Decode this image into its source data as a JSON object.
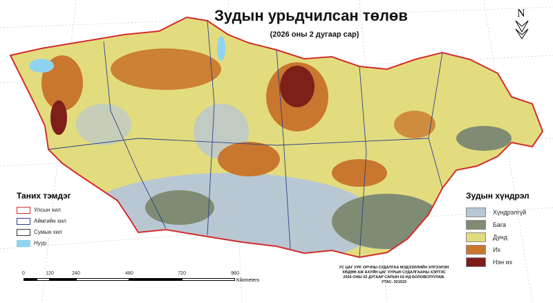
{
  "title": "Зудын урьдчилсан төлөв",
  "subtitle": "(2026 оны 2 дугаар сар)",
  "north_arrow": {
    "label": "N",
    "icon": "north-arrow-icon"
  },
  "legend_boundaries": {
    "title": "Таних тэмдэг",
    "items": [
      {
        "label": "Улсын хил",
        "color": "#d22b2b"
      },
      {
        "label": "Аймгийн хил",
        "color": "#2b3f8c"
      },
      {
        "label": "Сумын хил",
        "color": "#333333"
      },
      {
        "label": "Нуур",
        "color": "#8fd3f0"
      }
    ]
  },
  "legend_classes": {
    "title": "Зудын хүндрэл",
    "items": [
      {
        "label": "Хүндрэлгүй",
        "color": "#b9c7d3"
      },
      {
        "label": "Бага",
        "color": "#7f8c73"
      },
      {
        "label": "Дунд",
        "color": "#e3dc7e"
      },
      {
        "label": "Их",
        "color": "#c9772e"
      },
      {
        "label": "Нэн их",
        "color": "#7e1f1a"
      }
    ]
  },
  "credits": [
    "УС ЦАГ УУР, ОРЧНЫ СУДАЛГАА МЭДЭЭЛЛИЙН ХҮРЭЭЛЭН",
    "ХӨДӨӨ АЖ АХУЙН ЦАГ УУРЫН СУДАЛГААНЫ ХЭЛТЭС",
    "2026 ОНЫ 02 ДУГААР САРЫН 02-НД БОЛОВСРУУЛАВ.",
    "УТАС: 321523"
  ],
  "scale_bar": {
    "ticks": [
      "0",
      "120",
      "240",
      "480",
      "720",
      "960"
    ],
    "tick_values": [
      0,
      120,
      240,
      480,
      720,
      960
    ],
    "unit": "Kilometers"
  }
}
